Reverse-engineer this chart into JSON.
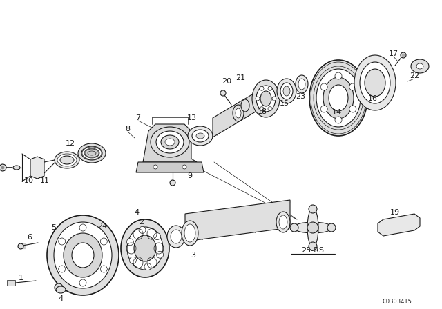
{
  "bg_color": "#ffffff",
  "line_color": "#1a1a1a",
  "diagram_code": "C0303415",
  "figsize": [
    6.4,
    4.48
  ],
  "dpi": 100
}
